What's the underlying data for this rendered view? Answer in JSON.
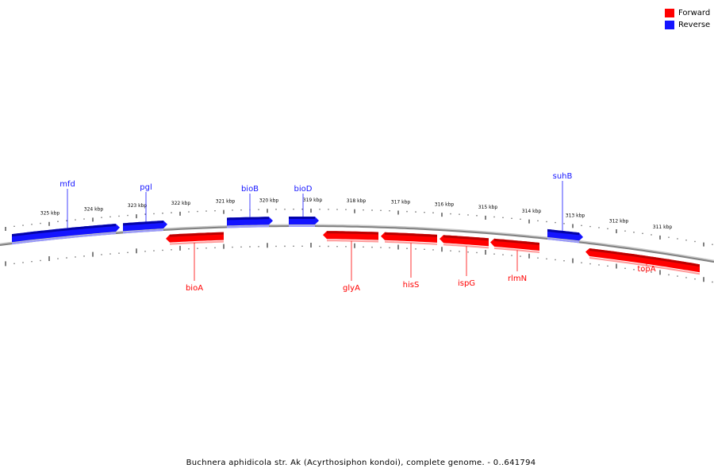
{
  "legend": {
    "forward_label": "Forward",
    "reverse_label": "Reverse"
  },
  "colors": {
    "forward": "#ff0000",
    "forward_dark": "#b00000",
    "reverse": "#1414ff",
    "reverse_dark": "#00009a",
    "backbone": "#808080"
  },
  "caption": "Buchnera aphidicola str. Ak (Acyrthosiphon kondoi), complete genome. - 0..641794",
  "tick_labels": [
    "325 kbp",
    "324 kbp",
    "323 kbp",
    "322 kbp",
    "321 kbp",
    "320 kbp",
    "319 kbp",
    "318 kbp",
    "317 kbp",
    "316 kbp",
    "315 kbp",
    "314 kbp",
    "313 kbp",
    "312 kbp",
    "311 kbp"
  ],
  "genes": [
    {
      "name": "mfd",
      "strand": "reverse"
    },
    {
      "name": "pgl",
      "strand": "reverse"
    },
    {
      "name": "bioA",
      "strand": "forward"
    },
    {
      "name": "bioB",
      "strand": "reverse"
    },
    {
      "name": "bioD",
      "strand": "reverse"
    },
    {
      "name": "glyA",
      "strand": "forward"
    },
    {
      "name": "hisS",
      "strand": "forward"
    },
    {
      "name": "ispG",
      "strand": "forward"
    },
    {
      "name": "rlmN",
      "strand": "forward"
    },
    {
      "name": "suhB",
      "strand": "reverse"
    },
    {
      "name": "topA",
      "strand": "forward"
    }
  ]
}
